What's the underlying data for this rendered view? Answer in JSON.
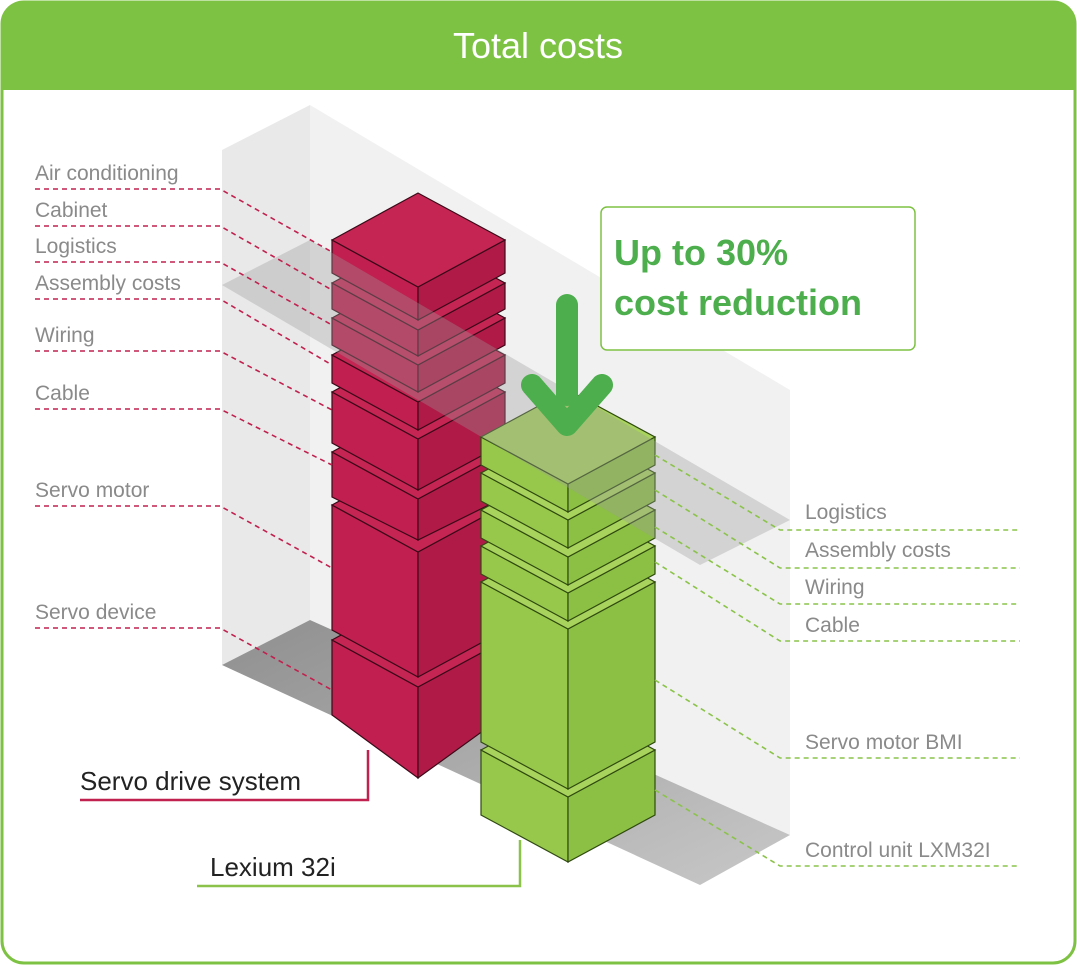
{
  "header": {
    "title": "Total costs"
  },
  "callout": {
    "line1": "Up to 30%",
    "line2": "cost reduction"
  },
  "left_labels": [
    "Air conditioning",
    "Cabinet",
    "Logistics",
    "Assembly costs",
    "Wiring",
    "Cable",
    "Servo motor",
    "Servo device"
  ],
  "right_labels": [
    "Logistics",
    "Assembly costs",
    "Wiring",
    "Cable",
    "Servo motor BMI",
    "Control unit LXM32I"
  ],
  "systems": {
    "left": "Servo drive system",
    "right": "Lexium 32i"
  }
}
